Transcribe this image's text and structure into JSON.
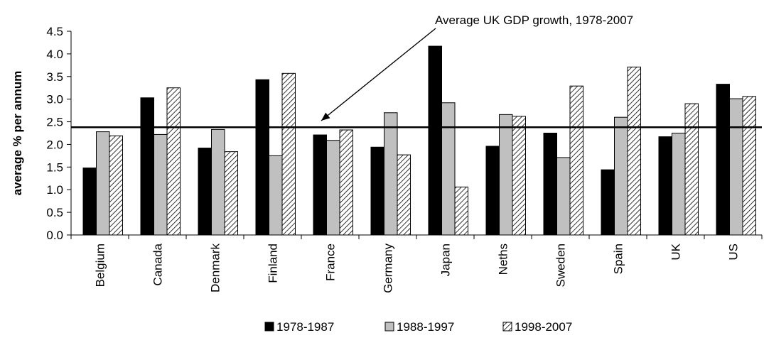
{
  "chart_data": {
    "type": "bar",
    "title": "",
    "xlabel": "",
    "ylabel": "average % per annum",
    "ylim": [
      0,
      4.5
    ],
    "yticks": [
      "0.0",
      "0.5",
      "1.0",
      "1.5",
      "2.0",
      "2.5",
      "3.0",
      "3.5",
      "4.0",
      "4.5"
    ],
    "categories": [
      "Belgium",
      "Canada",
      "Denmark",
      "Finland",
      "France",
      "Germany",
      "Japan",
      "Neths",
      "Sweden",
      "Spain",
      "UK",
      "US"
    ],
    "series": [
      {
        "name": "1978-1987",
        "fill": "solid-black",
        "values": [
          1.48,
          3.03,
          1.92,
          3.43,
          2.21,
          1.94,
          4.17,
          1.96,
          2.25,
          1.44,
          2.17,
          3.33
        ]
      },
      {
        "name": "1988-1997",
        "fill": "solid-grey",
        "values": [
          2.28,
          2.22,
          2.33,
          1.75,
          2.09,
          2.7,
          2.92,
          2.66,
          1.71,
          2.6,
          2.25,
          3.01
        ]
      },
      {
        "name": "1998-2007",
        "fill": "diagonal-hatch",
        "values": [
          2.19,
          3.25,
          1.84,
          3.57,
          2.32,
          1.77,
          1.06,
          2.62,
          3.29,
          3.71,
          2.9,
          3.06
        ]
      }
    ],
    "reference_line": {
      "value": 2.38,
      "label": "Average UK GDP growth, 1978-2007"
    },
    "grid": false,
    "legend_position": "bottom"
  },
  "colors": {
    "series_1": "#000000",
    "series_2": "#c0c0c0",
    "hatch_line": "#000000",
    "axis": "#000000"
  }
}
